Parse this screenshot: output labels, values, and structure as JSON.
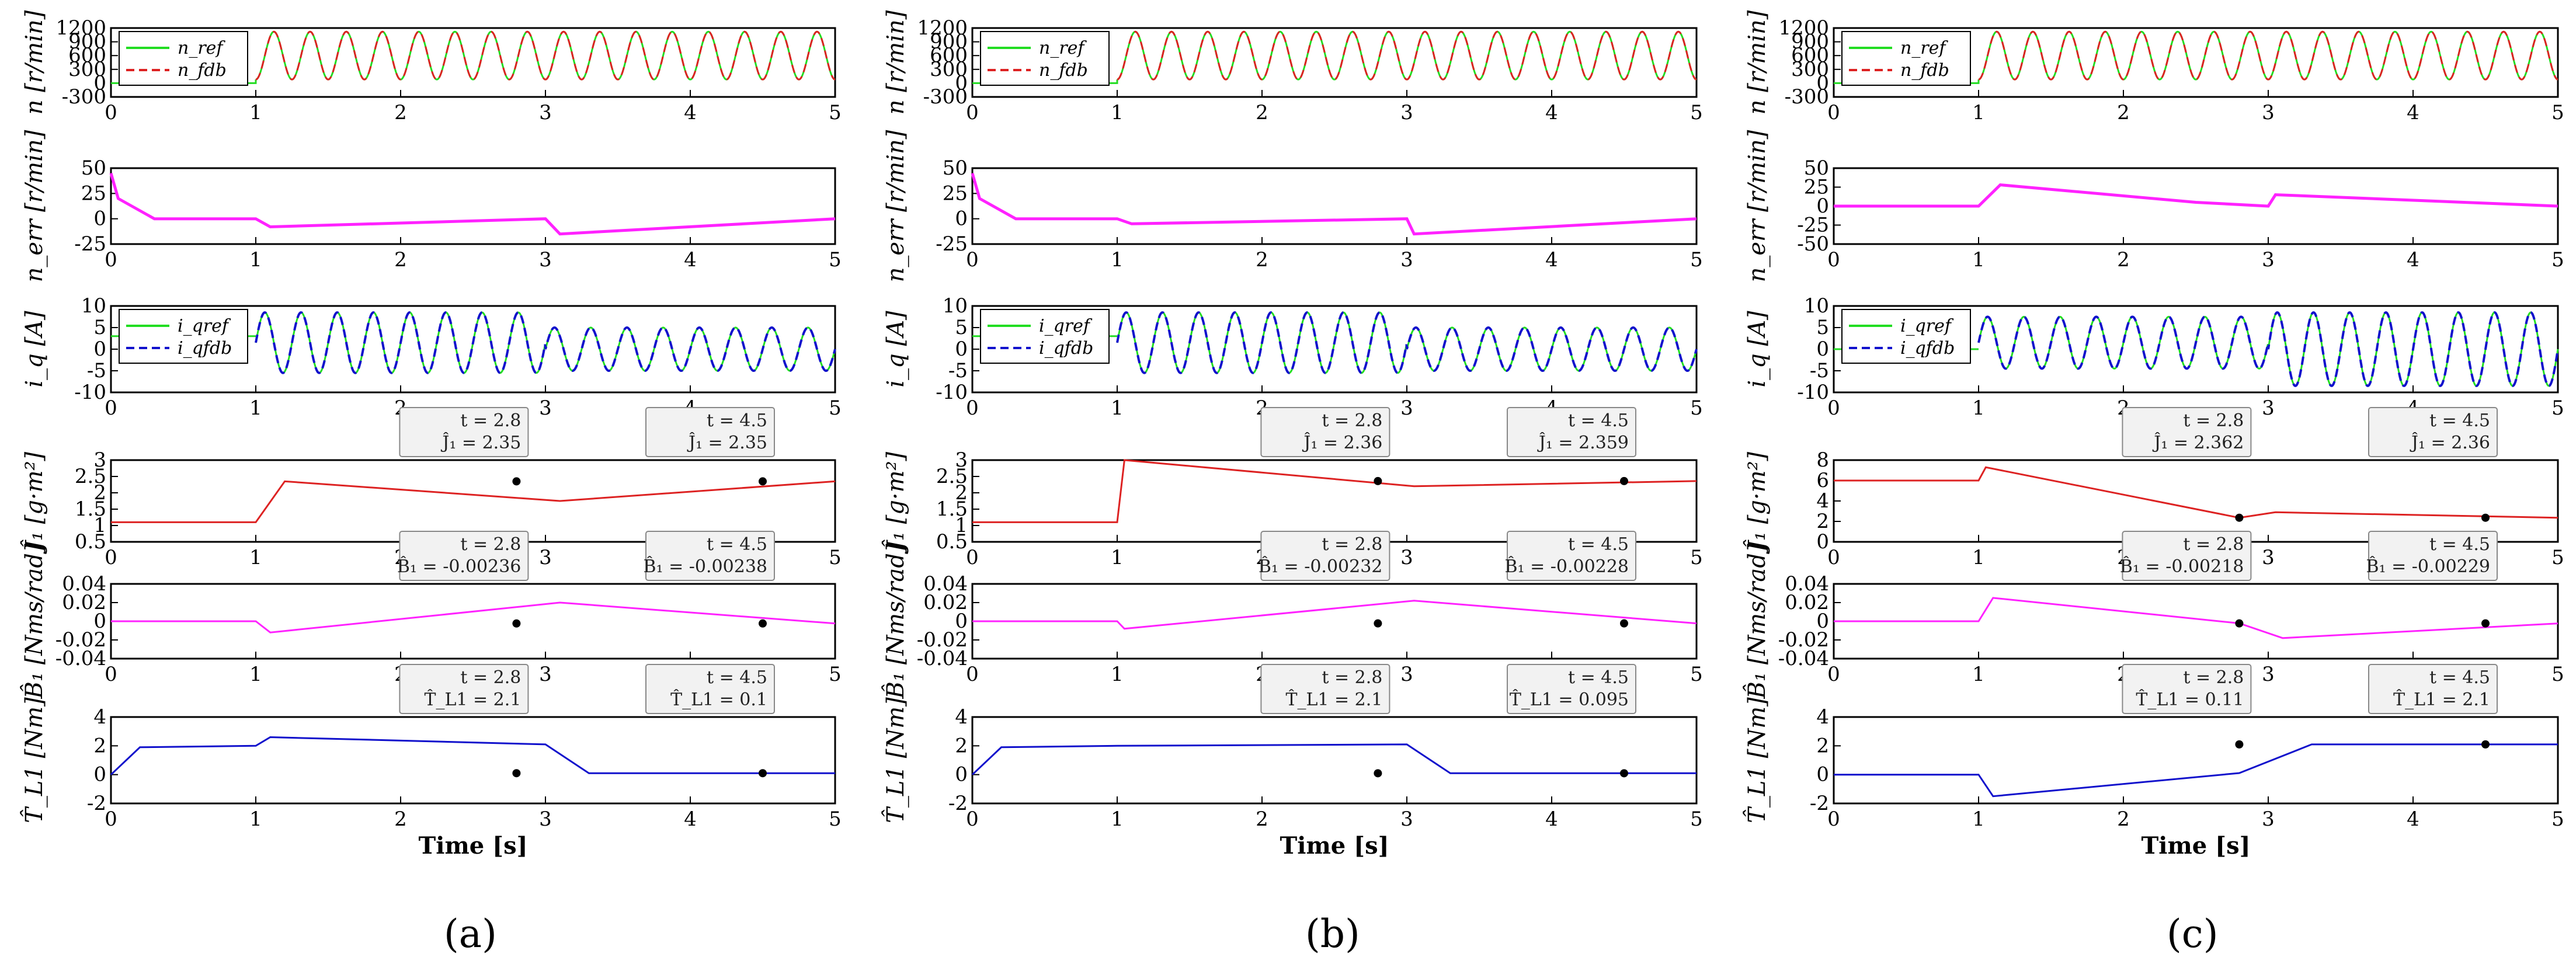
{
  "colors": {
    "ref": "#22dd22",
    "fdb": "#dd2222",
    "err": "#ff22ff",
    "iq_fdb": "#1111cc",
    "J": "#dd2222",
    "B": "#ff22ff",
    "T": "#1111cc"
  },
  "xlabel": "Time [s]",
  "xticks": [
    "0",
    "1",
    "2",
    "3",
    "4",
    "5"
  ],
  "rows": [
    {
      "key": "n",
      "ylabel": "n [r/min]",
      "yticks": [
        "1200",
        "900",
        "600",
        "300",
        "0",
        "-300"
      ]
    },
    {
      "key": "nerr",
      "ylabel": "n_err [r/min]"
    },
    {
      "key": "iq",
      "ylabel": "i_q [A]",
      "yticks": [
        "10",
        "5",
        "0",
        "-5",
        "-10"
      ]
    },
    {
      "key": "J",
      "ylabel": "Ĵ₁ [g·m²]"
    },
    {
      "key": "B",
      "ylabel": "B̂₁ [Nms/rad]",
      "yticks": [
        "0.04",
        "0.02",
        "0",
        "-0.02",
        "-0.04"
      ]
    },
    {
      "key": "T",
      "ylabel": "T̂_L1 [Nm]",
      "yticks": [
        "4",
        "2",
        "0",
        "-2"
      ]
    }
  ],
  "chart_data": [
    {
      "label": "(a)",
      "type": "line",
      "x_range": [
        0,
        5
      ],
      "panels": {
        "n": {
          "ylim": [
            -300,
            1200
          ],
          "legend": [
            "n_ref",
            "n_fdb"
          ],
          "series": [
            {
              "name": "n_ref",
              "x": [
                0,
                1,
                5
              ],
              "y": [
                0,
                0,
                0
              ]
            }
          ]
        },
        "nerr": {
          "ylim": [
            -25,
            50
          ],
          "yticks": [
            "50",
            "25",
            "0",
            "-25"
          ],
          "series": [
            {
              "x": [
                0,
                0.05,
                0.3,
                1,
                1.1,
                3,
                3.1,
                5
              ],
              "y": [
                45,
                20,
                0,
                0,
                -8,
                0,
                -15,
                0
              ]
            }
          ]
        },
        "iq": {
          "ylim": [
            -10,
            10
          ],
          "legend": [
            "i_qref",
            "i_qfdb"
          ],
          "series": [
            {
              "x": [
                0,
                1,
                3,
                5
              ],
              "y": [
                3,
                3,
                0,
                0
              ]
            }
          ]
        },
        "J": {
          "ylim": [
            0.5,
            3
          ],
          "yticks": [
            "3",
            "2.5",
            "2",
            "1.5",
            "1",
            "0.5"
          ],
          "series": [
            {
              "x": [
                0,
                1,
                1.2,
                3.1,
                5
              ],
              "y": [
                1.1,
                1.1,
                2.35,
                1.75,
                2.35
              ]
            }
          ],
          "datatips": [
            {
              "t": "t = 2.8",
              "v": "Ĵ₁ = 2.35"
            },
            {
              "t": "t = 4.5",
              "v": "Ĵ₁ = 2.35"
            }
          ]
        },
        "B": {
          "ylim": [
            -0.04,
            0.04
          ],
          "series": [
            {
              "x": [
                0,
                1,
                1.1,
                3.1,
                5
              ],
              "y": [
                0,
                0,
                -0.012,
                0.02,
                -0.00238
              ]
            }
          ],
          "datatips": [
            {
              "t": "t = 2.8",
              "v": "B̂₁ = -0.00236"
            },
            {
              "t": "t = 4.5",
              "v": "B̂₁ = -0.00238"
            }
          ]
        },
        "T": {
          "ylim": [
            -2,
            4
          ],
          "series": [
            {
              "x": [
                0,
                0.2,
                1,
                1.1,
                3,
                3.3,
                5
              ],
              "y": [
                0,
                1.9,
                2.0,
                2.6,
                2.1,
                0.1,
                0.1
              ]
            }
          ],
          "datatips": [
            {
              "t": "t = 2.8",
              "v": "T̂_L1 = 2.1"
            },
            {
              "t": "t = 4.5",
              "v": "T̂_L1 = 0.1"
            }
          ]
        }
      }
    },
    {
      "label": "(b)",
      "type": "line",
      "x_range": [
        0,
        5
      ],
      "panels": {
        "n": {
          "ylim": [
            -300,
            1200
          ],
          "legend": [
            "n_ref",
            "n_fdb"
          ],
          "series": [
            {
              "name": "n_ref",
              "x": [
                0,
                1,
                5
              ],
              "y": [
                0,
                0,
                0
              ]
            }
          ]
        },
        "nerr": {
          "ylim": [
            -25,
            50
          ],
          "yticks": [
            "50",
            "25",
            "0",
            "-25"
          ],
          "series": [
            {
              "x": [
                0,
                0.05,
                0.3,
                1,
                1.1,
                3,
                3.05,
                5
              ],
              "y": [
                45,
                20,
                0,
                0,
                -5,
                0,
                -15,
                0
              ]
            }
          ]
        },
        "iq": {
          "ylim": [
            -10,
            10
          ],
          "legend": [
            "i_qref",
            "i_qfdb"
          ],
          "series": [
            {
              "x": [
                0,
                1,
                3,
                5
              ],
              "y": [
                3,
                3,
                0,
                0
              ]
            }
          ]
        },
        "J": {
          "ylim": [
            0.5,
            3
          ],
          "yticks": [
            "3",
            "2.5",
            "2",
            "1.5",
            "1",
            "0.5"
          ],
          "series": [
            {
              "x": [
                0,
                1,
                1.05,
                3.05,
                5
              ],
              "y": [
                1.1,
                1.1,
                3.0,
                2.2,
                2.359
              ]
            }
          ],
          "datatips": [
            {
              "t": "t = 2.8",
              "v": "Ĵ₁ = 2.36"
            },
            {
              "t": "t = 4.5",
              "v": "Ĵ₁ = 2.359"
            }
          ]
        },
        "B": {
          "ylim": [
            -0.04,
            0.04
          ],
          "series": [
            {
              "x": [
                0,
                1,
                1.05,
                3.05,
                5
              ],
              "y": [
                0,
                0,
                -0.008,
                0.022,
                -0.00228
              ]
            }
          ],
          "datatips": [
            {
              "t": "t = 2.8",
              "v": "B̂₁ = -0.00232"
            },
            {
              "t": "t = 4.5",
              "v": "B̂₁ = -0.00228"
            }
          ]
        },
        "T": {
          "ylim": [
            -2,
            4
          ],
          "series": [
            {
              "x": [
                0,
                0.2,
                1,
                3,
                3.3,
                5
              ],
              "y": [
                0,
                1.9,
                2.0,
                2.1,
                0.095,
                0.095
              ]
            }
          ],
          "datatips": [
            {
              "t": "t = 2.8",
              "v": "T̂_L1 = 2.1"
            },
            {
              "t": "t = 4.5",
              "v": "T̂_L1 = 0.095"
            }
          ]
        }
      }
    },
    {
      "label": "(c)",
      "type": "line",
      "x_range": [
        0,
        5
      ],
      "panels": {
        "n": {
          "ylim": [
            -300,
            1200
          ],
          "legend": [
            "n_ref",
            "n_fdb"
          ],
          "series": [
            {
              "name": "n_ref",
              "x": [
                0,
                1,
                5
              ],
              "y": [
                0,
                0,
                0
              ]
            }
          ]
        },
        "nerr": {
          "ylim": [
            -50,
            50
          ],
          "yticks": [
            "50",
            "25",
            "0",
            "-25",
            "-50"
          ],
          "series": [
            {
              "x": [
                0,
                1,
                1.15,
                2.5,
                3,
                3.05,
                5
              ],
              "y": [
                0,
                0,
                28,
                5,
                0,
                15,
                0
              ]
            }
          ]
        },
        "iq": {
          "ylim": [
            -10,
            10
          ],
          "legend": [
            "i_qref",
            "i_qfdb"
          ],
          "series": [
            {
              "x": [
                0,
                1,
                3,
                5
              ],
              "y": [
                0,
                0,
                0,
                0
              ]
            }
          ]
        },
        "J": {
          "ylim": [
            0,
            8
          ],
          "yticks": [
            "8",
            "6",
            "4",
            "2",
            "0"
          ],
          "series": [
            {
              "x": [
                0,
                1,
                1.05,
                2.8,
                3.05,
                5
              ],
              "y": [
                6,
                6,
                7.3,
                2.362,
                2.9,
                2.36
              ]
            }
          ],
          "datatips": [
            {
              "t": "t = 2.8",
              "v": "Ĵ₁ = 2.362"
            },
            {
              "t": "t = 4.5",
              "v": "Ĵ₁ = 2.36"
            }
          ]
        },
        "B": {
          "ylim": [
            -0.04,
            0.04
          ],
          "series": [
            {
              "x": [
                0,
                1,
                1.1,
                2.8,
                3.1,
                5
              ],
              "y": [
                0,
                0,
                0.025,
                -0.00218,
                -0.018,
                -0.00229
              ]
            }
          ],
          "datatips": [
            {
              "t": "t = 2.8",
              "v": "B̂₁ = -0.00218"
            },
            {
              "t": "t = 4.5",
              "v": "B̂₁ = -0.00229"
            }
          ]
        },
        "T": {
          "ylim": [
            -2,
            4
          ],
          "series": [
            {
              "x": [
                0,
                1,
                1.1,
                2.8,
                3.3,
                5
              ],
              "y": [
                0,
                0,
                -1.5,
                0.11,
                2.1,
                2.1
              ]
            }
          ],
          "datatips": [
            {
              "t": "t = 2.8",
              "v": "T̂_L1 = 0.11"
            },
            {
              "t": "t = 4.5",
              "v": "T̂_L1 = 2.1"
            }
          ]
        }
      }
    }
  ]
}
